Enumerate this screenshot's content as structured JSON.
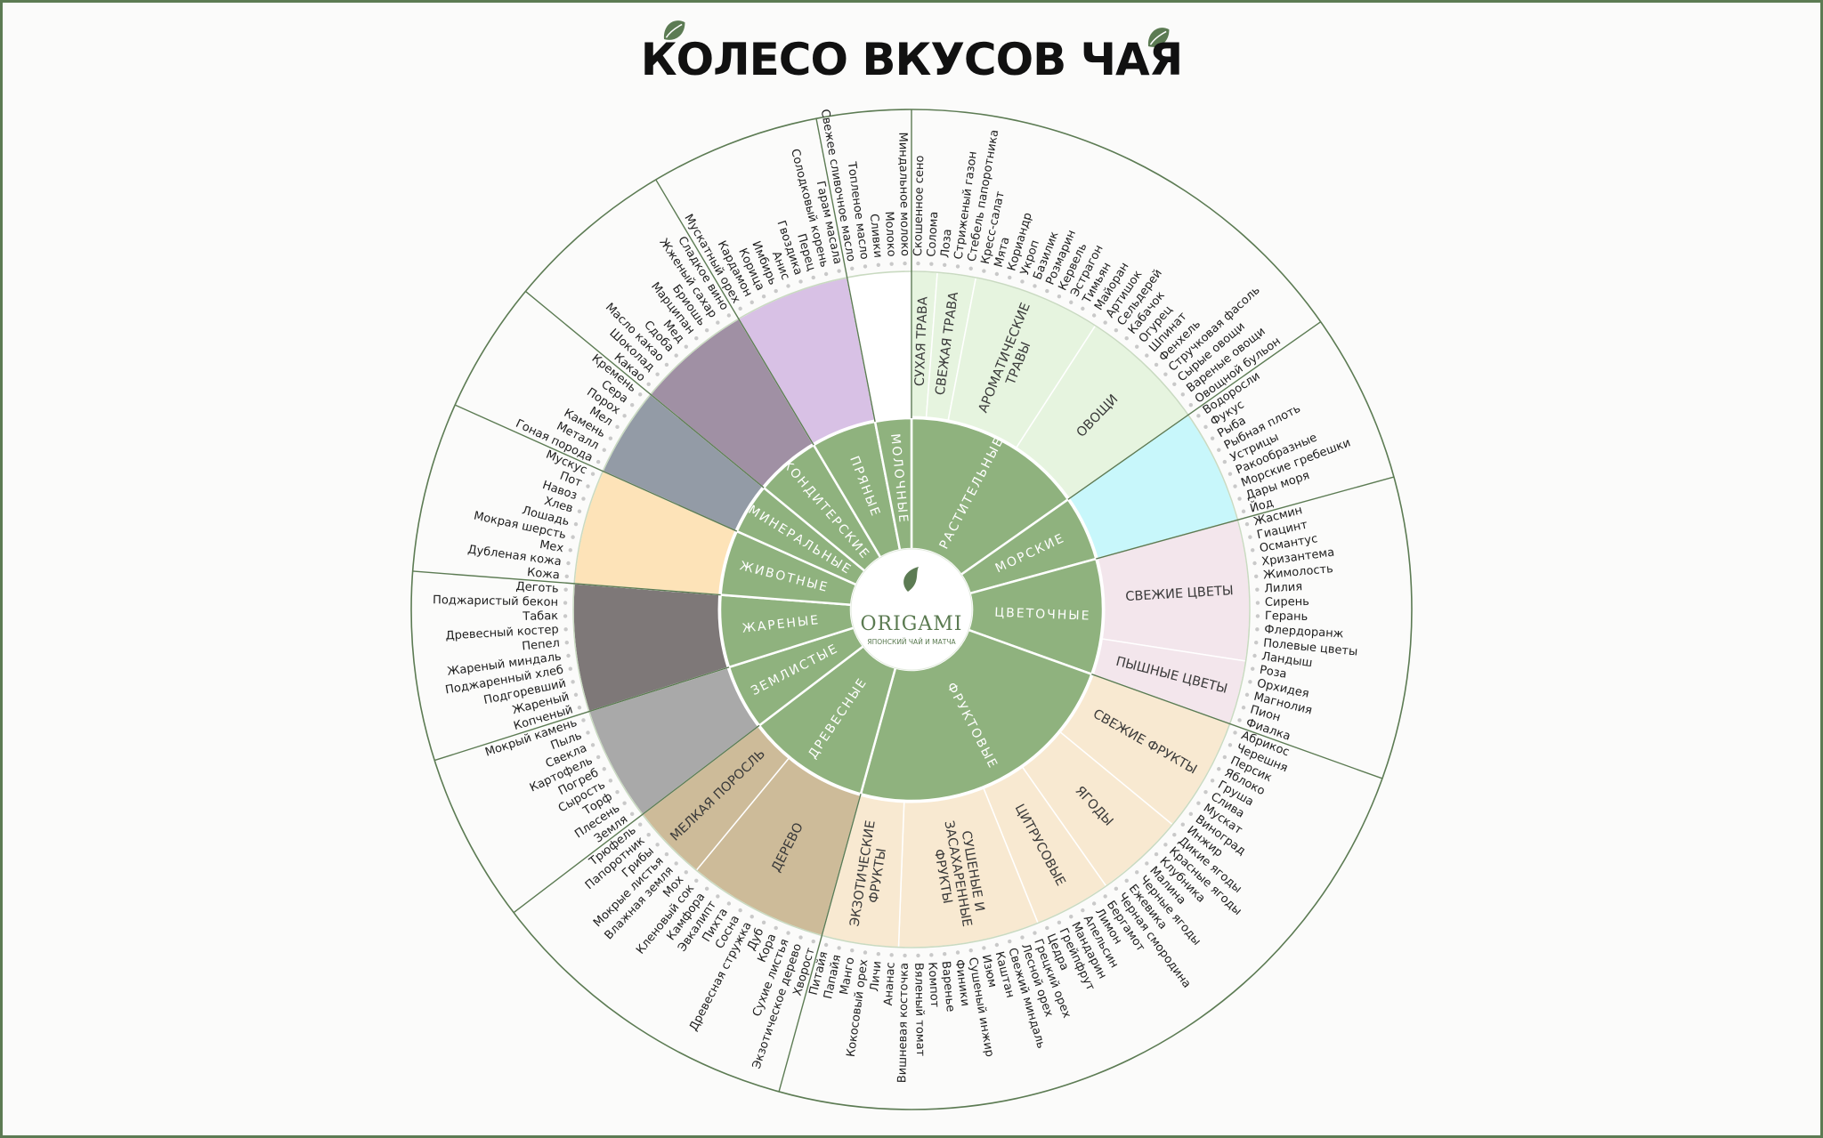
{
  "header": {
    "title": "КОЛЕСО ВКУСОВ ЧАЯ"
  },
  "logo": {
    "brand": "ORIGAMI",
    "tagline": "ЯПОНСКИЙ ЧАЙ И МАТЧА"
  },
  "wheel": {
    "categories": [
      {
        "name": "РАСТИТЕЛЬНЫЕ",
        "groups": [
          {
            "label": [
              "СУХАЯ ТРАВА"
            ],
            "color": "#e6f4df",
            "notes": [
              "Скошенное сено",
              "Солома"
            ]
          },
          {
            "label": [
              "СВЕЖАЯ ТРАВА"
            ],
            "color": "#e6f4df",
            "notes": [
              "Лоза",
              "Стриженый газон",
              "Стебель папоротника"
            ]
          },
          {
            "label": [
              "АРОМАТИЧЕСКИЕ",
              "ТРАВЫ"
            ],
            "color": "#e6f4df",
            "notes": [
              "Кресс-салат",
              "Мята",
              "Кориандр",
              "Укроп",
              "Базилик",
              "Розмарин",
              "Кервель",
              "Эстрагон",
              "Тимьян",
              "Майоран"
            ]
          },
          {
            "label": [
              "ОВОЩИ"
            ],
            "color": "#e6f4df",
            "notes": [
              "Артишок",
              "Сельдерей",
              "Кабачок",
              "Огурец",
              "Шпинат",
              "Фенхель",
              "Стручковая фасоль",
              "Сырые овощи",
              "Вареные овощи",
              "Овощной бульон"
            ]
          }
        ]
      },
      {
        "name": "МОРСКИЕ",
        "groups": [
          {
            "color": "#c8f7fb",
            "notes": [
              "Водоросли",
              "Фукус",
              "Рыба",
              "Рыбная плоть",
              "Устрицы",
              "Ракообразные",
              "Морские гребешки",
              "Дары моря",
              "Йод"
            ]
          }
        ]
      },
      {
        "name": "ЦВЕТОЧНЫЕ",
        "groups": [
          {
            "label": [
              "СВЕЖИЕ ЦВЕТЫ"
            ],
            "color": "#f3e6ec",
            "notes": [
              "Жасмин",
              "Гиацинт",
              "Османтус",
              "Хризантема",
              "Жимолость",
              "Лилия",
              "Сирень",
              "Герань",
              "Флердоранж",
              "Полевые цветы",
              "Ландыш"
            ]
          },
          {
            "label": [
              "ПЫШНЫЕ ЦВЕТЫ"
            ],
            "color": "#f3e6ec",
            "notes": [
              "Роза",
              "Орхидея",
              "Магнолия",
              "Пион",
              "Фиалка"
            ]
          }
        ]
      },
      {
        "name": "ФРУКТОВЫЕ",
        "groups": [
          {
            "label": [
              "СВЕЖИЕ ФРУКТЫ"
            ],
            "color": "#f8e9d1",
            "notes": [
              "Абрикос",
              "Черешня",
              "Персик",
              "Яблоко",
              "Груша",
              "Слива",
              "Мускат",
              "Виноград",
              "Инжир"
            ]
          },
          {
            "label": [
              "ЯГОДЫ"
            ],
            "color": "#f8e9d1",
            "notes": [
              "Дикие ягоды",
              "Красные ягоды",
              "Клубника",
              "Малина",
              "Черные ягоды",
              "Ежевика",
              "Черная смородина"
            ]
          },
          {
            "label": [
              "ЦИТРУСОВЫЕ"
            ],
            "color": "#f8e9d1",
            "notes": [
              "Бергамот",
              "Лимон",
              "Апельсин",
              "Мандарин",
              "Грейпфрут",
              "Цедра"
            ]
          },
          {
            "label": [
              "СУШЕНЫЕ И",
              "ЗАСАХАРЕННЫЕ",
              "ФРУКТЫ"
            ],
            "color": "#f8e9d1",
            "notes": [
              "Грецкий орех",
              "Лесной орех",
              "Свежий миндаль",
              "Каштан",
              "Изюм",
              "Сушеный инжир",
              "Финики",
              "Варенье",
              "Компот",
              "Вяленый томат",
              "Вишневая косточка"
            ]
          },
          {
            "label": [
              "ЭКЗОТИЧЕСКИЕ",
              "ФРУКТЫ"
            ],
            "color": "#f8e9d1",
            "notes": [
              "Ананас",
              "Личи",
              "Кокосовый орех",
              "Манго",
              "Папайя",
              "Питайя"
            ]
          }
        ]
      },
      {
        "name": "ДРЕВЕСНЫЕ",
        "groups": [
          {
            "label": [
              "ДЕРЕВО"
            ],
            "color": "#cdbb99",
            "notes": [
              "Хворост",
              "Экзотическое дерево",
              "Сухие листья",
              "Кора",
              "Дуб",
              "Древесная стружка",
              "Сосна",
              "Пихта",
              "Эвкалипт",
              "Камфора",
              "Кленовый сок"
            ]
          },
          {
            "label": [
              "МЕЛКАЯ ПОРОСЛЬ"
            ],
            "color": "#cdbb99",
            "notes": [
              "Мох",
              "Влажная земля",
              "Мокрые листья",
              "Грибы",
              "Папоротник",
              "Трюфель"
            ]
          }
        ]
      },
      {
        "name": "ЗЕМЛИСТЫЕ",
        "groups": [
          {
            "color": "#a9a9a9",
            "notes": [
              "Земля",
              "Плесень",
              "Торф",
              "Сырость",
              "Погреб",
              "Картофель",
              "Свекла",
              "Пыль",
              "Мокрый камень"
            ]
          }
        ]
      },
      {
        "name": "ЖАРЕНЫЕ",
        "groups": [
          {
            "color": "#7e7878",
            "notes": [
              "Копченый",
              "Жареный",
              "Подгоревший",
              "Поджаренный хлеб",
              "Жареный миндаль",
              "Пепел",
              "Древесный костер",
              "Табак",
              "Поджаристый бекон",
              "Деготь"
            ]
          }
        ]
      },
      {
        "name": "ЖИВОТНЫЕ",
        "groups": [
          {
            "color": "#fde3b8",
            "notes": [
              "Кожа",
              "Дубленая кожа",
              "Мех",
              "Мокрая шерсть",
              "Лошадь",
              "Хлев",
              "Навоз",
              "Пот",
              "Мускус"
            ]
          }
        ]
      },
      {
        "name": "МИНЕРАЛЬНЫЕ",
        "groups": [
          {
            "color": "#939ba6",
            "notes": [
              "Гоная порода",
              "Металл",
              "Камень",
              "Мел",
              "Порох",
              "Сера",
              "Кремень"
            ]
          }
        ]
      },
      {
        "name": "КОНДИТЕРСКИЕ",
        "groups": [
          {
            "color": "#a090a4",
            "notes": [
              "Какао",
              "Шоколад",
              "Масло какао",
              "Сдоба",
              "Мед",
              "Марципан",
              "Бриошь",
              "Жженый сахар",
              "Сладкое вино"
            ]
          }
        ]
      },
      {
        "name": "ПРЯНЫЕ",
        "groups": [
          {
            "color": "#d8c1e5",
            "notes": [
              "Мускатный орех",
              "Кардамон",
              "Корица",
              "Имбирь",
              "Анис",
              "Гвоздика",
              "Перец",
              "Солодковый корень",
              "Гарам масала"
            ]
          }
        ]
      },
      {
        "name": "МОЛОЧНЫЕ",
        "groups": [
          {
            "color": "#ffffff",
            "notes": [
              "Свежее сливочное масло",
              "Топленое масло",
              "Сливки",
              "Молоко",
              "Миндальное молоко"
            ]
          }
        ]
      }
    ]
  }
}
